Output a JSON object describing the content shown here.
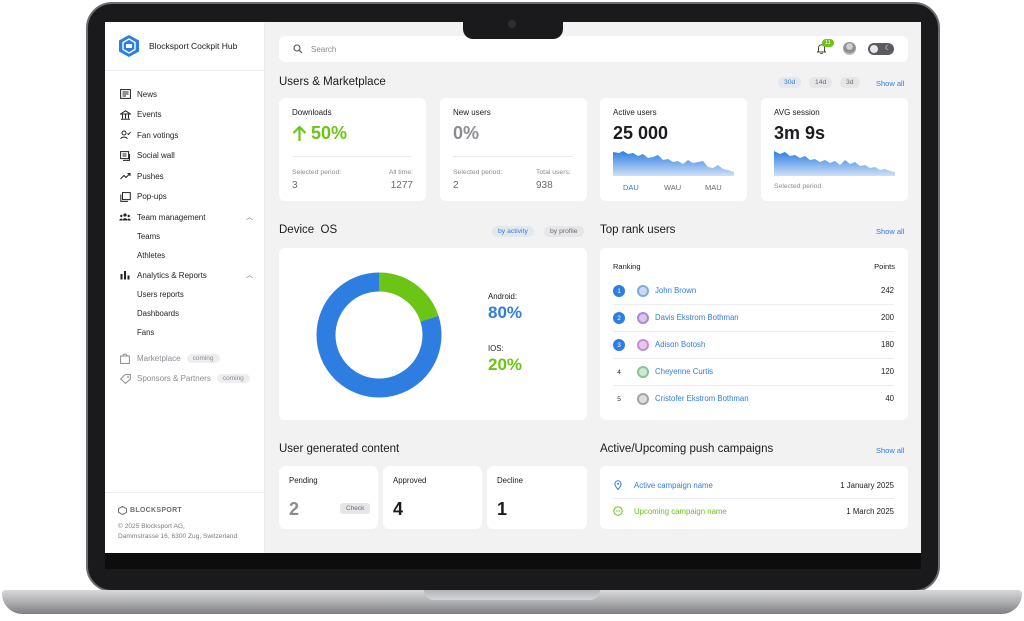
{
  "app": {
    "title": "Blocksport Cockpit Hub"
  },
  "sidebar": {
    "items": [
      {
        "label": "News",
        "icon": "news-icon"
      },
      {
        "label": "Events",
        "icon": "events-icon"
      },
      {
        "label": "Fan votings",
        "icon": "fan-votings-icon"
      },
      {
        "label": "Social wall",
        "icon": "social-wall-icon"
      },
      {
        "label": "Pushes",
        "icon": "pushes-icon"
      },
      {
        "label": "Pop-ups",
        "icon": "popups-icon"
      },
      {
        "label": "Team management",
        "icon": "team-icon",
        "expanded": true,
        "children": [
          "Teams",
          "Athletes"
        ]
      },
      {
        "label": "Analytics & Reports",
        "icon": "analytics-icon",
        "expanded": true,
        "children": [
          "Users reports",
          "Dashboards",
          "Fans"
        ]
      },
      {
        "label": "Marketplace",
        "icon": "marketplace-icon",
        "badge": "coming"
      },
      {
        "label": "Sponsors & Partners",
        "icon": "sponsors-icon",
        "badge": "coming"
      }
    ],
    "footer": {
      "logo_text": "BLOCKSPORT",
      "copyright": "© 2025 Blocksport AG,",
      "address": "Dammstrasse 16, 6300 Zug, Switzerland"
    }
  },
  "topbar": {
    "search_placeholder": "Search",
    "notifications_count": "11"
  },
  "users_marketplace": {
    "title": "Users & Marketplace",
    "periods": [
      "30d",
      "14d",
      "3d"
    ],
    "active_period": "30d",
    "show_all": "Show all",
    "cards": {
      "downloads": {
        "title": "Downloads",
        "value": "50%",
        "selected_label": "Selected period:",
        "selected_value": "3",
        "alltime_label": "All time:",
        "alltime_value": "1277"
      },
      "new_users": {
        "title": "New users",
        "value": "0%",
        "selected_label": "Selected period:",
        "selected_value": "2",
        "total_label": "Total users:",
        "total_value": "938"
      },
      "active_users": {
        "title": "Active users",
        "value": "25 000",
        "tabs": [
          "DAU",
          "WAU",
          "MAU"
        ],
        "active_tab": "DAU"
      },
      "avg_session": {
        "title": "AVG session",
        "value": "3m 9s",
        "caption": "Selected period"
      }
    }
  },
  "device_os": {
    "title": "Device  OS",
    "toggles": [
      "by activity",
      "by profile"
    ],
    "active_toggle": "by activity",
    "android_label": "Android:",
    "android_value": "80%",
    "ios_label": "IOS:",
    "ios_value": "20%"
  },
  "chart_data": {
    "type": "pie",
    "categories": [
      "Android",
      "IOS"
    ],
    "values": [
      80,
      20
    ],
    "colors": [
      "#2d7ee0",
      "#6cc416"
    ]
  },
  "top_rank": {
    "title": "Top rank users",
    "show_all": "Show all",
    "col_ranking": "Ranking",
    "col_points": "Points",
    "rows": [
      {
        "rank": "1",
        "name": "John Brown",
        "points": "242"
      },
      {
        "rank": "2",
        "name": "Davis Ekstrom Bothman",
        "points": "200"
      },
      {
        "rank": "3",
        "name": "Adison Botosh",
        "points": "180"
      },
      {
        "rank": "4",
        "name": "Cheyenne Curtis",
        "points": "120"
      },
      {
        "rank": "5",
        "name": "Cristofer Ekstrom Bothman",
        "points": "40"
      }
    ]
  },
  "ugc": {
    "title": "User generated content",
    "pending": {
      "label": "Pending",
      "value": "2",
      "action": "Check"
    },
    "approved": {
      "label": "Approved",
      "value": "4"
    },
    "decline": {
      "label": "Decline",
      "value": "1"
    }
  },
  "campaigns": {
    "title": "Active/Upcoming push campaigns",
    "show_all": "Show all",
    "rows": [
      {
        "name": "Active campaign name",
        "date": "1 January 2025",
        "color": "#2d7ee0"
      },
      {
        "name": "Upcoming campaign name",
        "date": "1 March 2025",
        "color": "#6cc416"
      }
    ]
  },
  "colors": {
    "accent_blue": "#2d7ee0",
    "accent_green": "#6cc416"
  }
}
